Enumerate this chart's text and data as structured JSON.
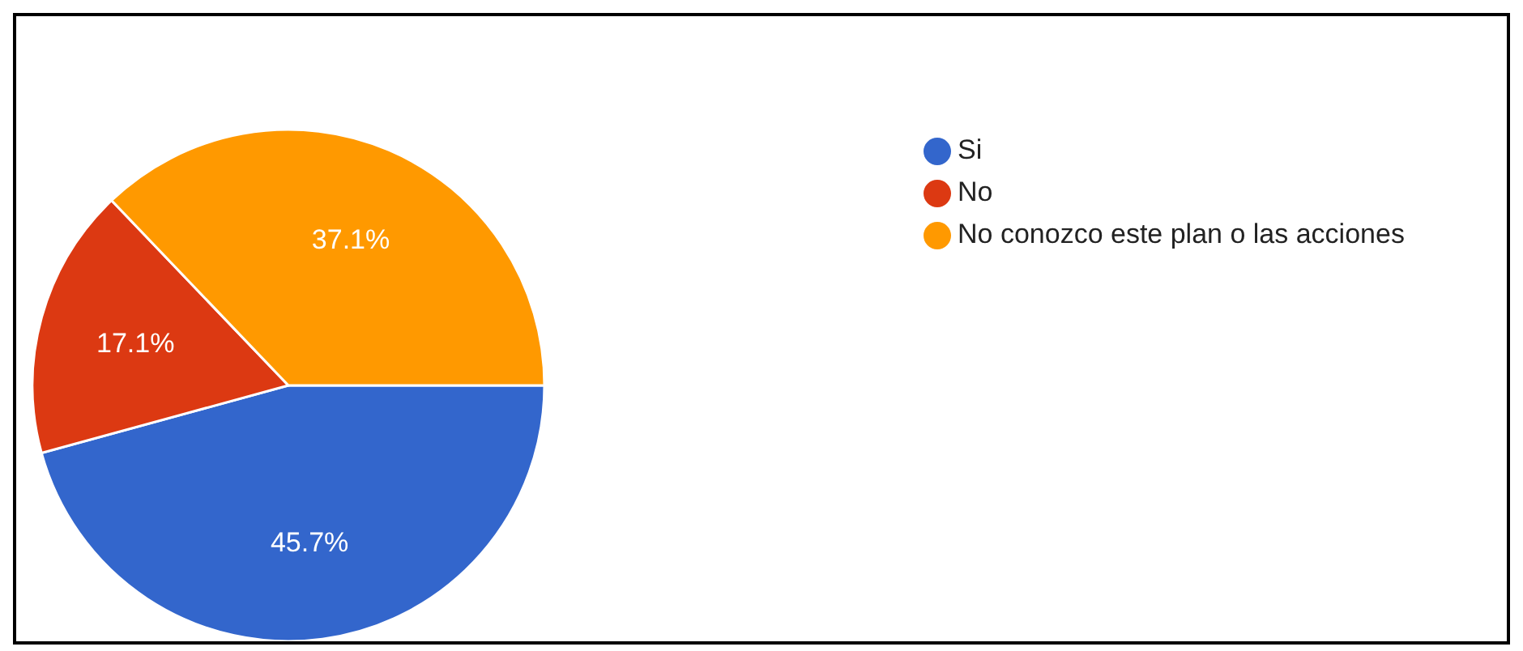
{
  "chart_data": {
    "type": "pie",
    "categories": [
      "Si",
      "No",
      "No conozco este plan o las acciones"
    ],
    "values": [
      45.7,
      17.1,
      37.1
    ],
    "colors": [
      "#3366cc",
      "#dc3912",
      "#ff9900"
    ],
    "value_labels": [
      "45.7%",
      "17.1%",
      "37.1%"
    ],
    "legend": "top right"
  }
}
